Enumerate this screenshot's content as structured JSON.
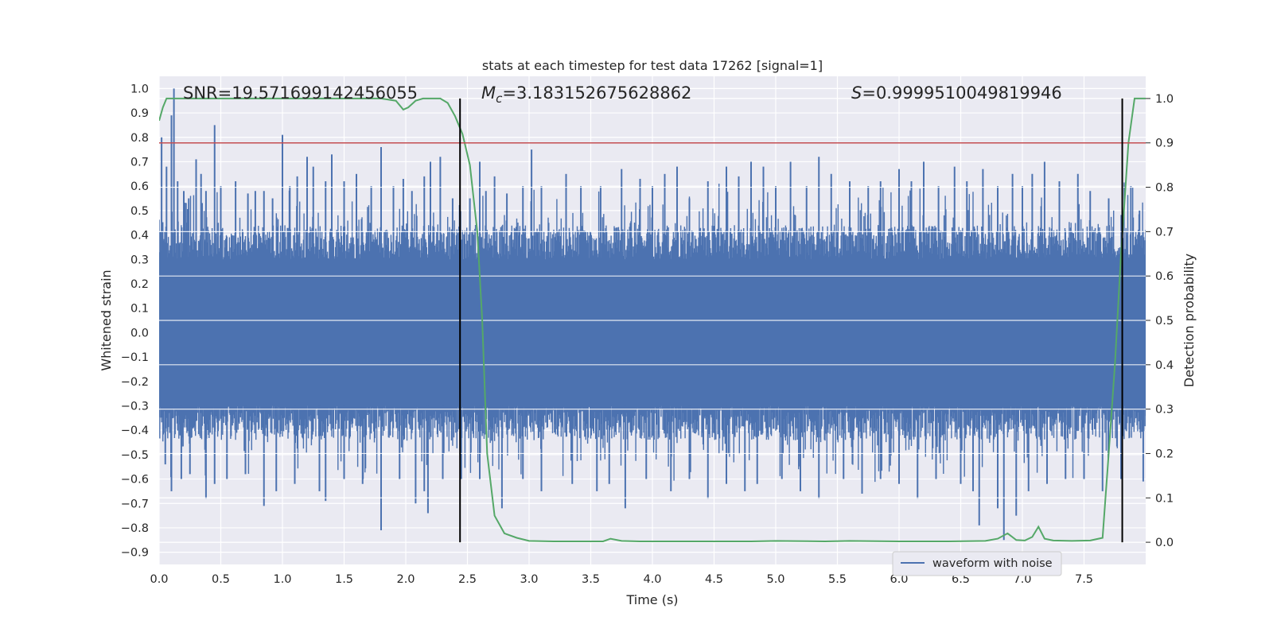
{
  "chart_data": {
    "type": "line",
    "title": "stats at each timestep for test data 17262 [signal=1]",
    "xlabel": "Time (s)",
    "ylabel": "Whitened strain",
    "y2label": "Detection probability",
    "xlim": [
      0,
      8
    ],
    "ylim": [
      -0.95,
      1.05
    ],
    "y2lim": [
      -0.05,
      1.05
    ],
    "x_ticks": [
      0.0,
      0.5,
      1.0,
      1.5,
      2.0,
      2.5,
      3.0,
      3.5,
      4.0,
      4.5,
      5.0,
      5.5,
      6.0,
      6.5,
      7.0,
      7.5
    ],
    "x_tick_labels": [
      "0.0",
      "0.5",
      "1.0",
      "1.5",
      "2.0",
      "2.5",
      "3.0",
      "3.5",
      "4.0",
      "4.5",
      "5.0",
      "5.5",
      "6.0",
      "6.5",
      "7.0",
      "7.5"
    ],
    "y_ticks": [
      -0.9,
      -0.8,
      -0.7,
      -0.6,
      -0.5,
      -0.4,
      -0.3,
      -0.2,
      -0.1,
      0.0,
      0.1,
      0.2,
      0.3,
      0.4,
      0.5,
      0.6,
      0.7,
      0.8,
      0.9,
      1.0
    ],
    "y_tick_labels": [
      "−0.9",
      "−0.8",
      "−0.7",
      "−0.6",
      "−0.5",
      "−0.4",
      "−0.3",
      "−0.2",
      "−0.1",
      "0.0",
      "0.1",
      "0.2",
      "0.3",
      "0.4",
      "0.5",
      "0.6",
      "0.7",
      "0.8",
      "0.9",
      "1.0"
    ],
    "y2_ticks": [
      0.0,
      0.1,
      0.2,
      0.3,
      0.4,
      0.5,
      0.6,
      0.7,
      0.8,
      0.9,
      1.0
    ],
    "y2_tick_labels": [
      "0.0",
      "0.1",
      "0.2",
      "0.3",
      "0.4",
      "0.5",
      "0.6",
      "0.7",
      "0.8",
      "0.9",
      "1.0"
    ],
    "grid": true,
    "annotations": {
      "snr": "SNR=19.571699142456055",
      "mc_symbol": "M",
      "mc_sub": "c",
      "mc_value": "=3.183152675628862",
      "s_symbol": "S",
      "s_value": "=0.9999510049819946"
    },
    "threshold_line": {
      "axis": "y2",
      "value": 0.9
    },
    "vertical_lines": [
      2.44,
      7.81
    ],
    "legend": {
      "placement": "bottom-right",
      "entries": [
        "waveform with noise"
      ]
    },
    "waveform": {
      "name": "waveform with noise",
      "color": "#4c72b0",
      "envelope_low": -0.3,
      "envelope_high": 0.3,
      "peaks_up": [
        [
          0.02,
          0.8
        ],
        [
          0.06,
          0.68
        ],
        [
          0.1,
          0.89
        ],
        [
          0.12,
          1.0
        ],
        [
          0.15,
          0.62
        ],
        [
          0.2,
          0.58
        ],
        [
          0.24,
          0.55
        ],
        [
          0.3,
          0.71
        ],
        [
          0.34,
          0.65
        ],
        [
          0.38,
          0.58
        ],
        [
          0.45,
          0.85
        ],
        [
          0.5,
          0.6
        ],
        [
          0.62,
          0.62
        ],
        [
          0.72,
          0.57
        ],
        [
          0.78,
          0.58
        ],
        [
          0.85,
          0.58
        ],
        [
          0.92,
          0.55
        ],
        [
          1.0,
          0.81
        ],
        [
          1.06,
          0.6
        ],
        [
          1.12,
          0.64
        ],
        [
          1.2,
          0.72
        ],
        [
          1.25,
          0.68
        ],
        [
          1.35,
          0.62
        ],
        [
          1.4,
          0.73
        ],
        [
          1.5,
          0.62
        ],
        [
          1.6,
          0.65
        ],
        [
          1.72,
          0.6
        ],
        [
          1.8,
          0.76
        ],
        [
          1.9,
          0.6
        ],
        [
          1.98,
          0.63
        ],
        [
          2.05,
          0.58
        ],
        [
          2.15,
          0.64
        ],
        [
          2.2,
          0.7
        ],
        [
          2.28,
          0.72
        ],
        [
          2.38,
          0.55
        ],
        [
          2.52,
          0.55
        ],
        [
          2.6,
          0.7
        ],
        [
          2.65,
          0.58
        ],
        [
          2.72,
          0.64
        ],
        [
          2.82,
          0.57
        ],
        [
          2.95,
          0.6
        ],
        [
          3.02,
          0.75
        ],
        [
          3.1,
          0.6
        ],
        [
          3.3,
          0.65
        ],
        [
          3.42,
          0.6
        ],
        [
          3.58,
          0.6
        ],
        [
          3.75,
          0.67
        ],
        [
          3.9,
          0.63
        ],
        [
          4.0,
          0.6
        ],
        [
          4.1,
          0.65
        ],
        [
          4.2,
          0.68
        ],
        [
          4.3,
          0.55
        ],
        [
          4.45,
          0.62
        ],
        [
          4.6,
          0.68
        ],
        [
          4.7,
          0.64
        ],
        [
          4.8,
          0.7
        ],
        [
          4.9,
          0.68
        ],
        [
          5.0,
          0.6
        ],
        [
          5.12,
          0.7
        ],
        [
          5.25,
          0.6
        ],
        [
          5.35,
          0.72
        ],
        [
          5.45,
          0.65
        ],
        [
          5.6,
          0.62
        ],
        [
          5.75,
          0.6
        ],
        [
          5.85,
          0.62
        ],
        [
          6.0,
          0.67
        ],
        [
          6.1,
          0.62
        ],
        [
          6.2,
          0.7
        ],
        [
          6.32,
          0.6
        ],
        [
          6.45,
          0.68
        ],
        [
          6.55,
          0.62
        ],
        [
          6.68,
          0.67
        ],
        [
          6.8,
          0.6
        ],
        [
          6.92,
          0.65
        ],
        [
          7.0,
          0.6
        ],
        [
          7.08,
          0.65
        ],
        [
          7.18,
          0.7
        ],
        [
          7.3,
          0.62
        ],
        [
          7.45,
          0.65
        ],
        [
          7.55,
          0.58
        ],
        [
          7.7,
          0.55
        ],
        [
          7.88,
          0.6
        ],
        [
          7.95,
          0.5
        ]
      ],
      "peaks_down": [
        [
          0.05,
          -0.54
        ],
        [
          0.1,
          -0.65
        ],
        [
          0.18,
          -0.6
        ],
        [
          0.25,
          -0.58
        ],
        [
          0.38,
          -0.68
        ],
        [
          0.45,
          -0.62
        ],
        [
          0.55,
          -0.6
        ],
        [
          0.7,
          -0.58
        ],
        [
          0.85,
          -0.71
        ],
        [
          0.95,
          -0.65
        ],
        [
          1.1,
          -0.62
        ],
        [
          1.3,
          -0.65
        ],
        [
          1.35,
          -0.69
        ],
        [
          1.5,
          -0.6
        ],
        [
          1.65,
          -0.62
        ],
        [
          1.8,
          -0.81
        ],
        [
          1.95,
          -0.6
        ],
        [
          2.08,
          -0.7
        ],
        [
          2.15,
          -0.65
        ],
        [
          2.18,
          -0.74
        ],
        [
          2.3,
          -0.6
        ],
        [
          2.45,
          -0.6
        ],
        [
          2.6,
          -0.6
        ],
        [
          2.78,
          -0.72
        ],
        [
          2.95,
          -0.6
        ],
        [
          3.1,
          -0.65
        ],
        [
          3.35,
          -0.62
        ],
        [
          3.55,
          -0.65
        ],
        [
          3.65,
          -0.62
        ],
        [
          3.78,
          -0.72
        ],
        [
          3.95,
          -0.6
        ],
        [
          4.15,
          -0.65
        ],
        [
          4.3,
          -0.6
        ],
        [
          4.45,
          -0.68
        ],
        [
          4.6,
          -0.62
        ],
        [
          4.75,
          -0.65
        ],
        [
          4.85,
          -0.62
        ],
        [
          5.05,
          -0.6
        ],
        [
          5.2,
          -0.65
        ],
        [
          5.35,
          -0.68
        ],
        [
          5.55,
          -0.6
        ],
        [
          5.7,
          -0.66
        ],
        [
          5.85,
          -0.6
        ],
        [
          6.0,
          -0.62
        ],
        [
          6.15,
          -0.68
        ],
        [
          6.3,
          -0.6
        ],
        [
          6.5,
          -0.62
        ],
        [
          6.6,
          -0.65
        ],
        [
          6.65,
          -0.79
        ],
        [
          6.8,
          -0.72
        ],
        [
          6.85,
          -0.85
        ],
        [
          6.95,
          -0.75
        ],
        [
          7.05,
          -0.65
        ],
        [
          7.2,
          -0.62
        ],
        [
          7.35,
          -0.6
        ],
        [
          7.5,
          -0.6
        ],
        [
          7.65,
          -0.65
        ],
        [
          7.8,
          -0.6
        ],
        [
          7.98,
          -0.61
        ]
      ]
    },
    "probability": {
      "color": "#55a868",
      "axis": "y2",
      "x": [
        0.0,
        0.03,
        0.06,
        0.1,
        0.2,
        0.4,
        0.6,
        0.8,
        1.0,
        1.2,
        1.4,
        1.6,
        1.8,
        1.92,
        1.98,
        2.02,
        2.08,
        2.14,
        2.2,
        2.28,
        2.34,
        2.4,
        2.46,
        2.52,
        2.58,
        2.62,
        2.66,
        2.72,
        2.8,
        2.9,
        3.0,
        3.2,
        3.4,
        3.6,
        3.66,
        3.75,
        3.9,
        4.1,
        4.4,
        4.8,
        5.0,
        5.4,
        5.6,
        6.0,
        6.4,
        6.7,
        6.8,
        6.88,
        6.95,
        7.02,
        7.08,
        7.13,
        7.18,
        7.25,
        7.4,
        7.55,
        7.65,
        7.7,
        7.75,
        7.8,
        7.86,
        7.91,
        7.95,
        8.0
      ],
      "y": [
        0.95,
        0.98,
        1.0,
        1.0,
        1.0,
        1.0,
        1.0,
        1.0,
        1.0,
        1.0,
        1.0,
        1.0,
        1.0,
        0.995,
        0.975,
        0.98,
        0.995,
        1.0,
        1.0,
        1.0,
        0.99,
        0.96,
        0.92,
        0.85,
        0.7,
        0.5,
        0.2,
        0.06,
        0.02,
        0.01,
        0.003,
        0.002,
        0.002,
        0.002,
        0.008,
        0.003,
        0.002,
        0.002,
        0.002,
        0.002,
        0.003,
        0.002,
        0.003,
        0.002,
        0.002,
        0.003,
        0.008,
        0.02,
        0.005,
        0.004,
        0.012,
        0.035,
        0.008,
        0.004,
        0.003,
        0.004,
        0.01,
        0.2,
        0.4,
        0.65,
        0.9,
        1.0,
        1.0,
        1.0
      ]
    }
  }
}
